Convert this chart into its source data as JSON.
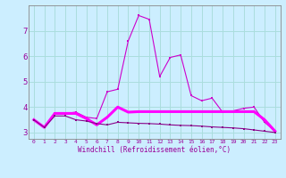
{
  "title": "",
  "xlabel": "Windchill (Refroidissement éolien,°C)",
  "ylabel": "",
  "background_color": "#cceeff",
  "grid_color": "#aadddd",
  "line_color": "#990099",
  "x_ticks": [
    0,
    1,
    2,
    3,
    4,
    5,
    6,
    7,
    8,
    9,
    10,
    11,
    12,
    13,
    14,
    15,
    16,
    17,
    18,
    19,
    20,
    21,
    22,
    23
  ],
  "xlim": [
    -0.5,
    23.5
  ],
  "ylim": [
    2.75,
    8.0
  ],
  "y_ticks": [
    3,
    4,
    5,
    6,
    7
  ],
  "series": [
    {
      "x": [
        0,
        1,
        2,
        3,
        4,
        5,
        6,
        7,
        8,
        9,
        10,
        11,
        12,
        13,
        14,
        15,
        16,
        17,
        18,
        19,
        20,
        21,
        22,
        23
      ],
      "y": [
        3.5,
        3.2,
        3.75,
        3.75,
        3.8,
        3.6,
        3.55,
        4.6,
        4.7,
        6.6,
        7.6,
        7.45,
        5.2,
        5.95,
        6.05,
        4.45,
        4.25,
        4.35,
        3.8,
        3.85,
        3.95,
        4.0,
        3.4,
        3.05
      ],
      "color": "#cc00cc",
      "marker": "s",
      "markersize": 2.0,
      "linewidth": 0.8
    },
    {
      "x": [
        0,
        1,
        2,
        3,
        4,
        5,
        6,
        7,
        8,
        9,
        10,
        11,
        12,
        13,
        14,
        15,
        16,
        17,
        18,
        19,
        20,
        21,
        22,
        23
      ],
      "y": [
        3.5,
        3.2,
        3.75,
        3.75,
        3.75,
        3.55,
        3.3,
        3.6,
        4.0,
        3.8,
        3.82,
        3.82,
        3.82,
        3.82,
        3.82,
        3.82,
        3.82,
        3.82,
        3.82,
        3.82,
        3.82,
        3.82,
        3.5,
        3.05
      ],
      "color": "#ff00ff",
      "marker": "s",
      "markersize": 2.0,
      "linewidth": 2.2
    },
    {
      "x": [
        0,
        1,
        2,
        3,
        4,
        5,
        6,
        7,
        8,
        9,
        10,
        11,
        12,
        13,
        14,
        15,
        16,
        17,
        18,
        19,
        20,
        21,
        22,
        23
      ],
      "y": [
        3.5,
        3.2,
        3.65,
        3.65,
        3.5,
        3.45,
        3.35,
        3.3,
        3.4,
        3.38,
        3.36,
        3.35,
        3.33,
        3.3,
        3.28,
        3.27,
        3.25,
        3.22,
        3.2,
        3.18,
        3.15,
        3.1,
        3.05,
        3.0
      ],
      "color": "#880088",
      "marker": "s",
      "markersize": 2.0,
      "linewidth": 0.8
    }
  ]
}
